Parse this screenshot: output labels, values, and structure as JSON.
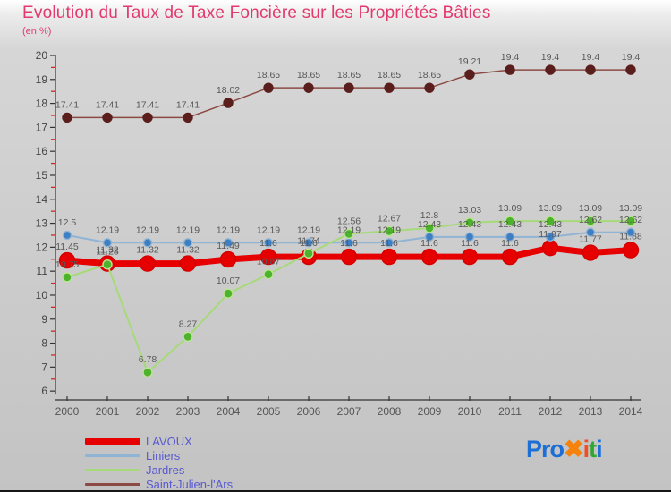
{
  "title": "Evolution du Taux de Taxe Foncière sur les Propriétés Bâties",
  "subtitle": "(en %)",
  "colors": {
    "title": "#e23a6e",
    "axis": "#333333",
    "minor_tick": "#cc2a2a",
    "value_label": "#58585a",
    "year_label": "#555555",
    "legend_text": "#5959d1",
    "background_top": "#ffffff",
    "background_bottom": "#c3c3c3"
  },
  "chart_data": {
    "type": "line",
    "title": "Evolution du Taux de Taxe Foncière sur les Propriétés Bâties",
    "subtitle": "(en %)",
    "xlabel": "",
    "ylabel": "en %",
    "ylim": [
      6,
      20
    ],
    "ytick_step": 1,
    "minor_tick_step": 0.5,
    "grid": false,
    "legend_position": "bottom-left",
    "x": [
      2000,
      2001,
      2002,
      2003,
      2004,
      2005,
      2006,
      2007,
      2008,
      2009,
      2010,
      2011,
      2012,
      2013,
      2014
    ],
    "series": [
      {
        "name": "LAVOUX",
        "line_color": "#e60000",
        "dot_color": "#e60000",
        "dot_stroke": "#d40000",
        "line_width": 7,
        "dot_radius": 8.5,
        "label_dy": 12,
        "swatch_height": 7,
        "values": [
          11.45,
          11.32,
          11.32,
          11.32,
          11.49,
          11.6,
          11.6,
          11.6,
          11.6,
          11.6,
          11.6,
          11.6,
          11.97,
          11.77,
          11.88
        ]
      },
      {
        "name": "Liniers",
        "line_color": "#8fb4d4",
        "dot_color": "#3e7ec2",
        "dot_stroke": "#8fb4d4",
        "line_width": 2,
        "dot_radius": 4.5,
        "label_dy": 11,
        "swatch_height": 3,
        "values": [
          12.5,
          12.19,
          12.19,
          12.19,
          12.19,
          12.19,
          12.19,
          12.19,
          12.19,
          12.43,
          12.43,
          12.43,
          12.43,
          12.62,
          12.62
        ]
      },
      {
        "name": "Jardres",
        "line_color": "#a6da79",
        "dot_color": "#4db32c",
        "dot_stroke": "#bce495",
        "line_width": 2,
        "dot_radius": 5,
        "label_dy": 11,
        "swatch_height": 3,
        "values": [
          10.75,
          11.28,
          6.78,
          8.27,
          10.07,
          10.87,
          11.74,
          12.56,
          12.67,
          12.8,
          13.03,
          13.09,
          13.09,
          13.09,
          13.09
        ]
      },
      {
        "name": "Saint-Julien-l'Ars",
        "line_color": "#8d4a45",
        "dot_color": "#5a1e1c",
        "dot_stroke": "#5a1e1c",
        "line_width": 1.5,
        "dot_radius": 5,
        "label_dy": 11,
        "swatch_height": 3,
        "values": [
          17.41,
          17.41,
          17.41,
          17.41,
          18.02,
          18.65,
          18.65,
          18.65,
          18.65,
          18.65,
          19.21,
          19.4,
          19.4,
          19.4,
          19.4
        ]
      }
    ]
  },
  "logo": {
    "name": "Proxiti",
    "segments": [
      {
        "text": "Pro",
        "color": "#1b6fd6"
      },
      {
        "text": "✖",
        "color": "#f5820b"
      },
      {
        "text": "i",
        "color": "#f04e23"
      },
      {
        "text": "t",
        "color": "#2fa832"
      },
      {
        "text": "i",
        "color": "#1b6fd6"
      }
    ]
  }
}
